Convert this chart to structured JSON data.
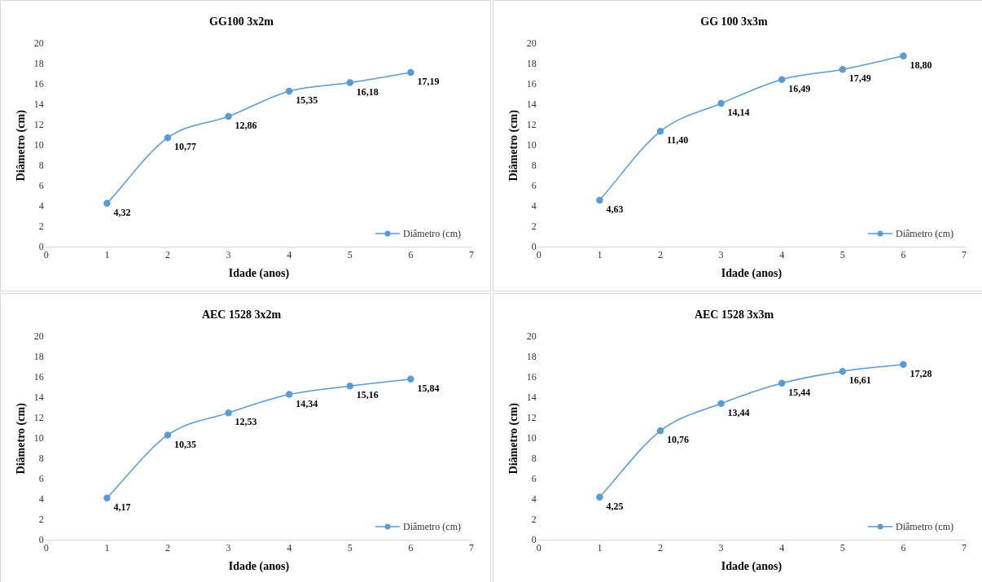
{
  "chart_data": [
    {
      "type": "line",
      "title": "GG100 3x2m",
      "xlabel": "Idade (anos)",
      "ylabel": "Diâmetro (cm)",
      "x": [
        1,
        2,
        3,
        4,
        5,
        6
      ],
      "xlim": [
        0,
        7
      ],
      "xticks": [
        0,
        1,
        2,
        3,
        4,
        5,
        6,
        7
      ],
      "ylim": [
        0,
        20
      ],
      "yticks": [
        0,
        2,
        4,
        6,
        8,
        10,
        12,
        14,
        16,
        18,
        20
      ],
      "grid": false,
      "legend": "bottom right",
      "marker": "circle",
      "line_style": "solid",
      "series": [
        {
          "name": "Diâmetro (cm)",
          "color": "#5b9bd5",
          "values": [
            4.32,
            10.77,
            12.86,
            15.35,
            16.18,
            17.19
          ],
          "value_labels": [
            "4,32",
            "10,77",
            "12,86",
            "15,35",
            "16,18",
            "17,19"
          ]
        }
      ]
    },
    {
      "type": "line",
      "title": "GG 100 3x3m",
      "xlabel": "Idade (anos)",
      "ylabel": "Diâmetro (cm)",
      "x": [
        1,
        2,
        3,
        4,
        5,
        6
      ],
      "xlim": [
        0,
        7
      ],
      "xticks": [
        0,
        1,
        2,
        3,
        4,
        5,
        6,
        7
      ],
      "ylim": [
        0,
        20
      ],
      "yticks": [
        0,
        2,
        4,
        6,
        8,
        10,
        12,
        14,
        16,
        18,
        20
      ],
      "grid": false,
      "legend": "bottom right",
      "marker": "circle",
      "line_style": "solid",
      "series": [
        {
          "name": "Diâmetro (cm)",
          "color": "#5b9bd5",
          "values": [
            4.63,
            11.4,
            14.14,
            16.49,
            17.49,
            18.8
          ],
          "value_labels": [
            "4,63",
            "11,40",
            "14,14",
            "16,49",
            "17,49",
            "18,80"
          ]
        }
      ]
    },
    {
      "type": "line",
      "title": "AEC 1528 3x2m",
      "xlabel": "Idade (anos)",
      "ylabel": "Diâmetro (cm)",
      "x": [
        1,
        2,
        3,
        4,
        5,
        6
      ],
      "xlim": [
        0,
        7
      ],
      "xticks": [
        0,
        1,
        2,
        3,
        4,
        5,
        6,
        7
      ],
      "ylim": [
        0,
        20
      ],
      "yticks": [
        0,
        2,
        4,
        6,
        8,
        10,
        12,
        14,
        16,
        18,
        20
      ],
      "grid": false,
      "legend": "bottom right",
      "marker": "circle",
      "line_style": "solid",
      "series": [
        {
          "name": "Diâmetro (cm)",
          "color": "#5b9bd5",
          "values": [
            4.17,
            10.35,
            12.53,
            14.34,
            15.16,
            15.84
          ],
          "value_labels": [
            "4,17",
            "10,35",
            "12,53",
            "14,34",
            "15,16",
            "15,84"
          ]
        }
      ]
    },
    {
      "type": "line",
      "title": "AEC 1528 3x3m",
      "xlabel": "Idade (anos)",
      "ylabel": "Diâmetro (cm)",
      "x": [
        1,
        2,
        3,
        4,
        5,
        6
      ],
      "xlim": [
        0,
        7
      ],
      "xticks": [
        0,
        1,
        2,
        3,
        4,
        5,
        6,
        7
      ],
      "ylim": [
        0,
        20
      ],
      "yticks": [
        0,
        2,
        4,
        6,
        8,
        10,
        12,
        14,
        16,
        18,
        20
      ],
      "grid": false,
      "legend": "bottom right",
      "marker": "circle",
      "line_style": "solid",
      "series": [
        {
          "name": "Diâmetro (cm)",
          "color": "#5b9bd5",
          "values": [
            4.25,
            10.76,
            13.44,
            15.44,
            16.61,
            17.28
          ],
          "value_labels": [
            "4,25",
            "10,76",
            "13,44",
            "15,44",
            "16,61",
            "17,28"
          ]
        }
      ]
    }
  ]
}
